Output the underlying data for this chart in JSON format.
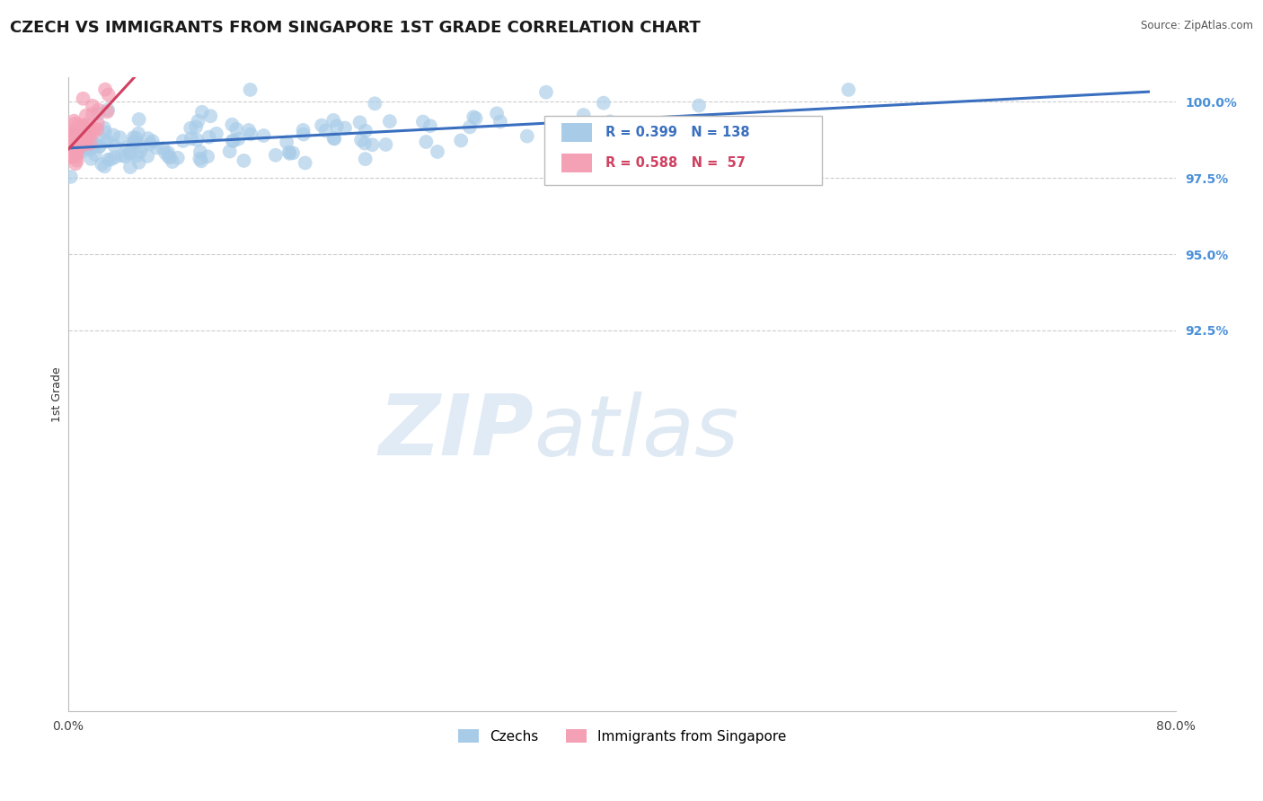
{
  "title": "CZECH VS IMMIGRANTS FROM SINGAPORE 1ST GRADE CORRELATION CHART",
  "source_text": "Source: ZipAtlas.com",
  "ylabel": "1st Grade",
  "xlim": [
    0.0,
    0.8
  ],
  "ylim": [
    0.8,
    1.008
  ],
  "xtick_labels": [
    "0.0%",
    "80.0%"
  ],
  "xtick_positions": [
    0.0,
    0.8
  ],
  "ytick_labels": [
    "100.0%",
    "97.5%",
    "95.0%",
    "92.5%"
  ],
  "ytick_positions": [
    1.0,
    0.975,
    0.95,
    0.925
  ],
  "czechs_color": "#a8cce8",
  "singapore_color": "#f4a0b5",
  "czechs_line_color": "#3a6fbf",
  "singapore_line_color": "#d04060",
  "legend_r_czechs": "R = 0.399",
  "legend_n_czechs": "N = 138",
  "legend_r_singapore": "R = 0.588",
  "legend_n_singapore": "N =  57",
  "watermark_zip": "ZIP",
  "watermark_atlas": "atlas",
  "background_color": "#ffffff",
  "grid_color": "#cccccc",
  "ytick_label_color": "#4a90d9",
  "title_fontsize": 13,
  "axis_label_fontsize": 9,
  "tick_label_fontsize": 10
}
